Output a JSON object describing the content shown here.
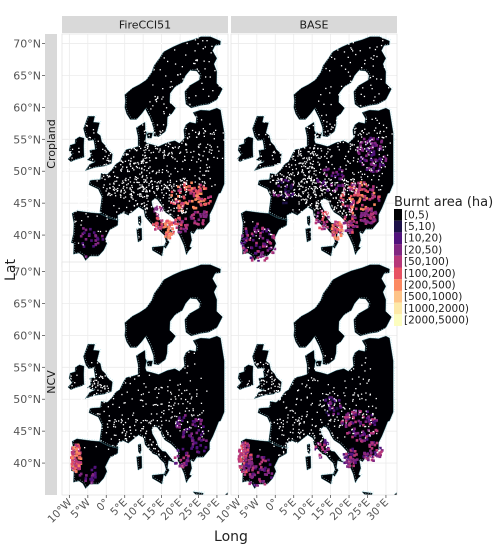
{
  "chart_data": {
    "type": "heatmap",
    "title": "",
    "xlabel": "Long",
    "ylabel": "Lat",
    "x_ticks": [
      "10°W",
      "5°W",
      "0°",
      "5°E",
      "10°E",
      "15°E",
      "20°E",
      "25°E",
      "30°E"
    ],
    "x_tick_values": [
      -10,
      -5,
      0,
      5,
      10,
      15,
      20,
      25,
      30
    ],
    "y_ticks": [
      "40°N",
      "45°N",
      "50°N",
      "55°N",
      "60°N",
      "65°N",
      "70°N"
    ],
    "y_tick_values": [
      40,
      45,
      50,
      55,
      60,
      65,
      70
    ],
    "xlim": [
      -12,
      33
    ],
    "ylim": [
      35,
      71.5
    ],
    "grid": true,
    "legend_position": "right",
    "facet_columns": [
      "FireCCI51",
      "BASE"
    ],
    "facet_rows": [
      "Cropland",
      "NCV"
    ],
    "legend": {
      "title": "Burnt area (ha)",
      "entries": [
        {
          "label": "[0,5)",
          "color": "#000004"
        },
        {
          "label": "[5,10)",
          "color": "#1d1147"
        },
        {
          "label": "[10,20)",
          "color": "#51127c"
        },
        {
          "label": "[20,50)",
          "color": "#822681"
        },
        {
          "label": "[50,100)",
          "color": "#b73779"
        },
        {
          "label": "[100,200)",
          "color": "#e75263"
        },
        {
          "label": "[200,500)",
          "color": "#fc8961"
        },
        {
          "label": "[500,1000)",
          "color": "#fec488"
        },
        {
          "label": "[1000,2000)",
          "color": "#fde9a8"
        },
        {
          "label": "[2000,5000)",
          "color": "#fcfdbf"
        }
      ]
    }
  }
}
